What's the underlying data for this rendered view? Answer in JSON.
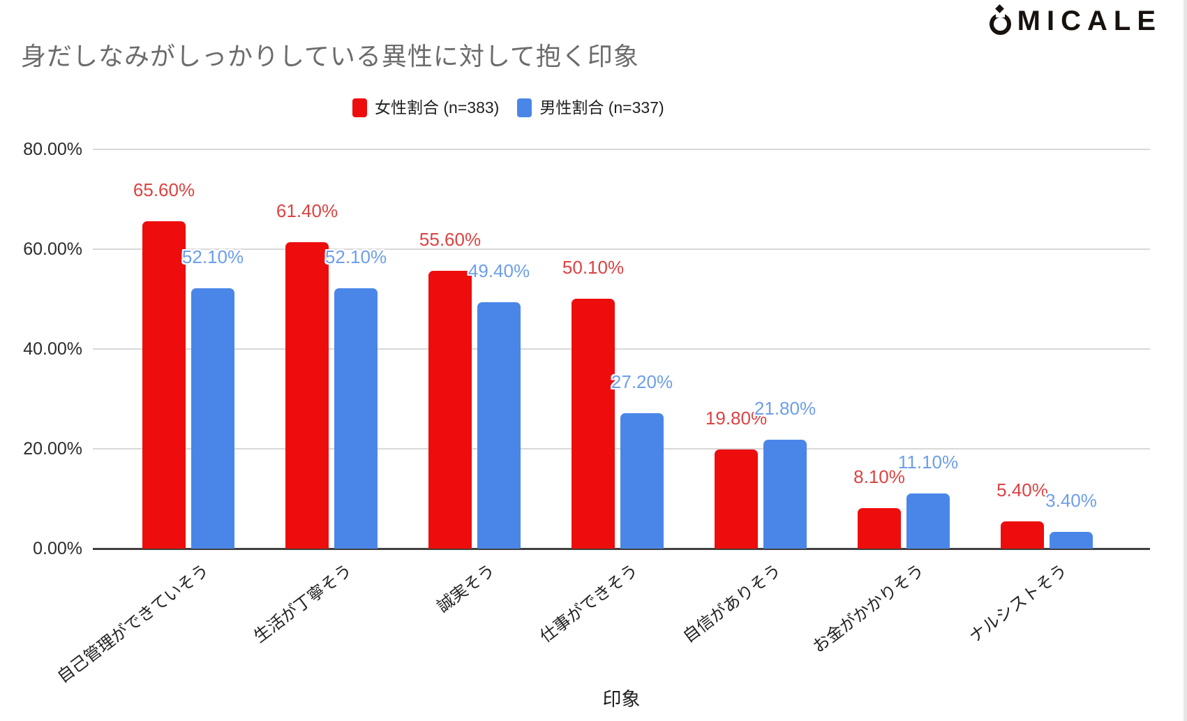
{
  "brand": {
    "wordmark": "OMICALE"
  },
  "header": {
    "title": "身だしなみがしっかりしている異性に対して抱く印象"
  },
  "chart_data": {
    "type": "bar",
    "title": "身だしなみがしっかりしている異性に対して抱く印象",
    "xlabel": "印象",
    "ylabel": "",
    "categories": [
      "自己管理ができていそう",
      "生活が丁寧そう",
      "誠実そう",
      "仕事ができそう",
      "自信がありそう",
      "お金がかかりそう",
      "ナルシストそう"
    ],
    "series": [
      {
        "name": "女性割合 (n=383)",
        "color": "#ee0d0d",
        "label_color": "#dd4242",
        "values": [
          65.6,
          61.4,
          55.6,
          50.1,
          19.8,
          8.1,
          5.4
        ],
        "value_labels": [
          "65.60%",
          "61.40%",
          "55.60%",
          "50.10%",
          "19.80%",
          "8.10%",
          "5.40%"
        ]
      },
      {
        "name": "男性割合 (n=337)",
        "color": "#4a86e8",
        "label_color": "#6d9eeb",
        "values": [
          52.1,
          52.1,
          49.4,
          27.2,
          21.8,
          11.1,
          3.4
        ],
        "value_labels": [
          "52.10%",
          "52.10%",
          "49.40%",
          "27.20%",
          "21.80%",
          "11.10%",
          "3.40%"
        ]
      }
    ],
    "ylim": [
      0,
      80
    ],
    "yticks": [
      {
        "value": 0,
        "label": "0.00%"
      },
      {
        "value": 20,
        "label": "20.00%"
      },
      {
        "value": 40,
        "label": "40.00%"
      },
      {
        "value": 60,
        "label": "60.00%"
      },
      {
        "value": 80,
        "label": "80.00%"
      }
    ],
    "grid": true,
    "legend_position": "top-center"
  }
}
